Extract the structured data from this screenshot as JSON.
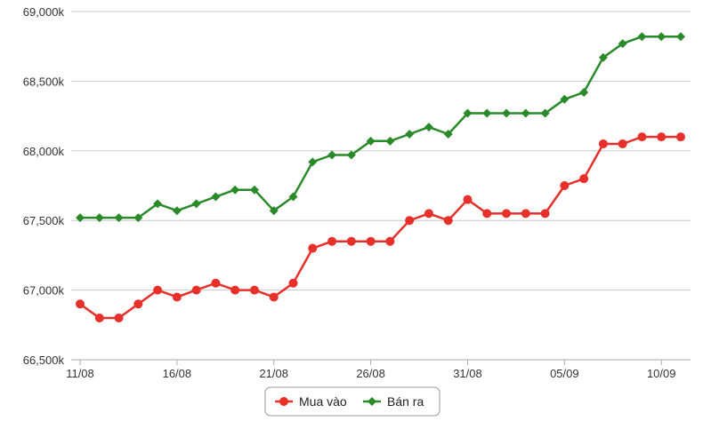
{
  "chart_data": {
    "type": "line",
    "x": [
      "11/08",
      "12/08",
      "13/08",
      "14/08",
      "15/08",
      "16/08",
      "17/08",
      "18/08",
      "19/08",
      "20/08",
      "21/08",
      "22/08",
      "23/08",
      "24/08",
      "25/08",
      "26/08",
      "27/08",
      "28/08",
      "29/08",
      "30/08",
      "31/08",
      "01/09",
      "02/09",
      "03/09",
      "04/09",
      "05/09",
      "06/09",
      "07/09",
      "08/09",
      "09/09",
      "10/09",
      "11/09"
    ],
    "x_tick_labels": [
      "11/08",
      "16/08",
      "21/08",
      "26/08",
      "31/08",
      "05/09",
      "10/09"
    ],
    "y_tick_labels": [
      "66,500k",
      "67,000k",
      "67,500k",
      "68,000k",
      "68,500k",
      "69,000k"
    ],
    "y_ticks": [
      66500,
      67000,
      67500,
      68000,
      68500,
      69000
    ],
    "ylim": [
      66500,
      69000
    ],
    "grid": true,
    "legend_position": "bottom-center",
    "series": [
      {
        "name": "Mua vào",
        "color": "#e8302a",
        "marker": "circle",
        "values": [
          66900,
          66800,
          66800,
          66900,
          67000,
          66950,
          67000,
          67050,
          67000,
          67000,
          66950,
          67050,
          67300,
          67350,
          67350,
          67350,
          67350,
          67500,
          67550,
          67500,
          67650,
          67550,
          67550,
          67550,
          67550,
          67750,
          67800,
          68050,
          68050,
          68100,
          68100,
          68100
        ]
      },
      {
        "name": "Bán ra",
        "color": "#2a8a2a",
        "marker": "diamond",
        "values": [
          67520,
          67520,
          67520,
          67520,
          67620,
          67570,
          67620,
          67670,
          67720,
          67720,
          67570,
          67670,
          67920,
          67970,
          67970,
          68070,
          68070,
          68120,
          68170,
          68120,
          68270,
          68270,
          68270,
          68270,
          68270,
          68370,
          68420,
          68670,
          68770,
          68820,
          68820,
          68820
        ]
      }
    ]
  }
}
